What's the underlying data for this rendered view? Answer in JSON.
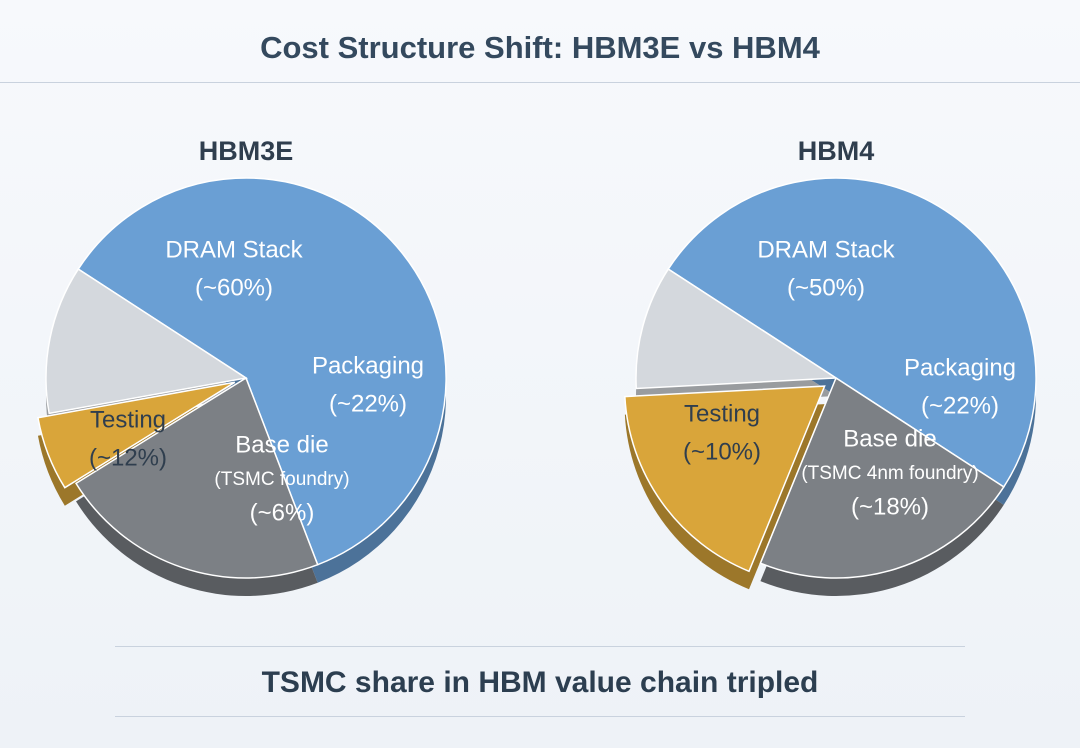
{
  "title": "Cost Structure Shift: HBM3E vs HBM4",
  "footer": "TSMC share in HBM value chain tripled",
  "colors": {
    "dram": "#6a9fd4",
    "packaging": "#7c8085",
    "base_die": "#d9a53a",
    "testing": "#d4d8dd",
    "text_dark": "#2f3e4e",
    "text_light": "#ffffff"
  },
  "chart_data": [
    {
      "type": "pie",
      "title": "HBM3E",
      "slices": [
        {
          "label": "DRAM Stack",
          "sublabel": "",
          "value_label": "(~60%)",
          "value": 60,
          "color_key": "dram"
        },
        {
          "label": "Packaging",
          "sublabel": "",
          "value_label": "(~22%)",
          "value": 22,
          "color_key": "packaging"
        },
        {
          "label": "Base die",
          "sublabel": "(TSMC foundry)",
          "value_label": "(~6%)",
          "value": 6,
          "color_key": "base_die"
        },
        {
          "label": "Testing",
          "sublabel": "",
          "value_label": "(~12%)",
          "value": 12,
          "color_key": "testing"
        }
      ]
    },
    {
      "type": "pie",
      "title": "HBM4",
      "slices": [
        {
          "label": "DRAM Stack",
          "sublabel": "",
          "value_label": "(~50%)",
          "value": 50,
          "color_key": "dram"
        },
        {
          "label": "Packaging",
          "sublabel": "",
          "value_label": "(~22%)",
          "value": 22,
          "color_key": "packaging"
        },
        {
          "label": "Base die",
          "sublabel": "(TSMC 4nm foundry)",
          "value_label": "(~18%)",
          "value": 18,
          "color_key": "base_die"
        },
        {
          "label": "Testing",
          "sublabel": "",
          "value_label": "(~10%)",
          "value": 10,
          "color_key": "testing"
        }
      ]
    }
  ]
}
